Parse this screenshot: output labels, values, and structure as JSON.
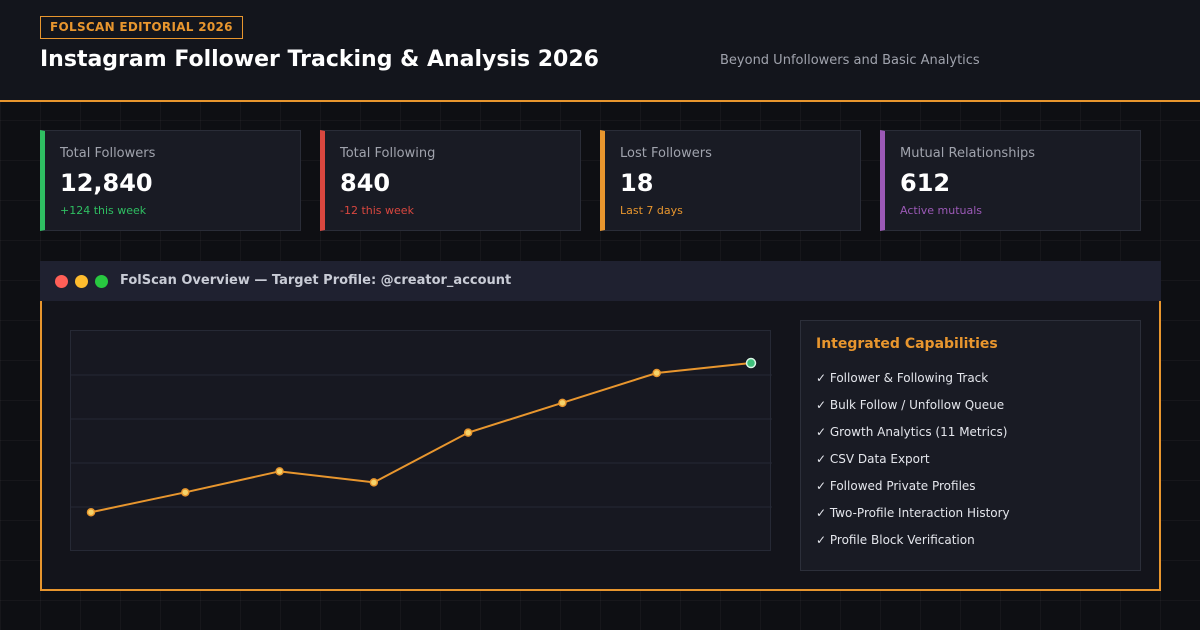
{
  "header": {
    "badge": "FOLSCAN EDITORIAL 2026",
    "title": "Instagram Follower Tracking & Analysis 2026",
    "subtitle": "Beyond Unfollowers and Basic Analytics"
  },
  "stats": [
    {
      "label": "Total Followers",
      "value": "12,840",
      "delta": "+124 this week",
      "color": "#2fbf62"
    },
    {
      "label": "Total Following",
      "value": "840",
      "delta": "-12 this week",
      "color": "#d9473f"
    },
    {
      "label": "Lost Followers",
      "value": "18",
      "delta": "Last 7 days",
      "color": "#e8962e"
    },
    {
      "label": "Mutual Relationships",
      "value": "612",
      "delta": "Active mutuals",
      "color": "#9b59b6"
    }
  ],
  "panel": {
    "title": "FolScan Overview — Target Profile: @creator_account",
    "window_dots": [
      "#ff5f57",
      "#febc2e",
      "#28c840"
    ]
  },
  "chart_data": {
    "type": "line",
    "title": "",
    "xlabel": "",
    "ylabel": "",
    "x": [
      1,
      2,
      3,
      4,
      5,
      6,
      7,
      8
    ],
    "ylim": [
      0,
      100
    ],
    "grid": true,
    "series": [
      {
        "values": [
          18,
          27,
          36.5,
          31.5,
          54,
          67.5,
          81,
          85.5
        ],
        "color": "#e8962e"
      }
    ],
    "marker_color": "#f5d36a",
    "last_marker_color": "#3fbf7a"
  },
  "capabilities": {
    "title": "Integrated Capabilities",
    "items": [
      "✓ Follower & Following Track",
      "✓ Bulk Follow / Unfollow Queue",
      "✓ Growth Analytics (11 Metrics)",
      "✓ CSV Data Export",
      "✓ Followed Private Profiles",
      "✓ Two-Profile Interaction History",
      "✓ Profile Block Verification"
    ]
  }
}
